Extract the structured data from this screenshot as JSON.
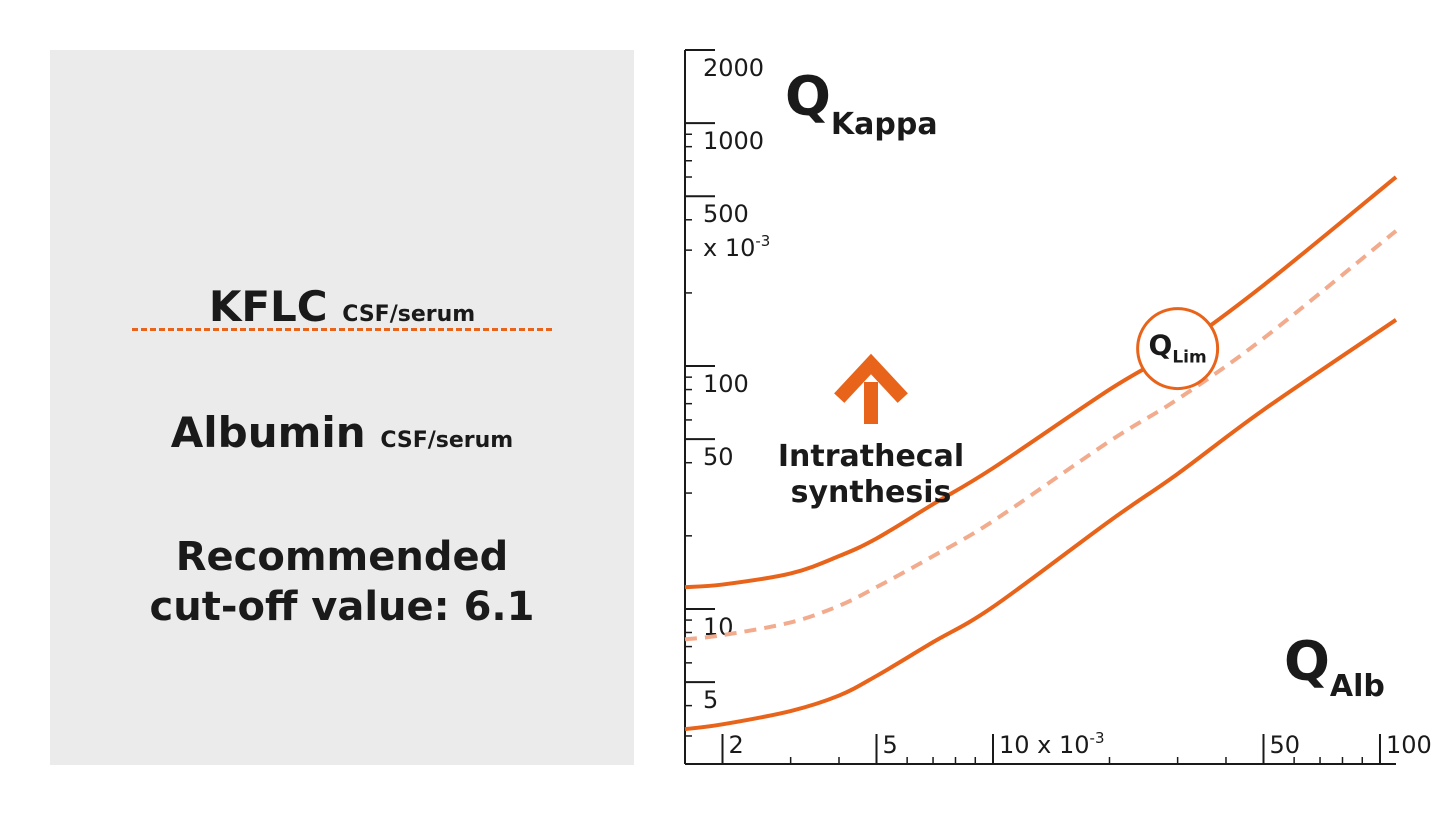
{
  "info_panel": {
    "numerator_main": "KFLC",
    "numerator_sub": "CSF/serum",
    "denominator_main": "Albumin",
    "denominator_sub": "CSF/serum",
    "cutoff_line1": "Recommended",
    "cutoff_line2": "cut-off value: 6.1",
    "divider_color": "#e8641b"
  },
  "colors": {
    "accent": "#e8641b",
    "dashed_curve": "#f2ab8c",
    "panel_bg": "#ebebeb",
    "axis": "#1a1a1a"
  },
  "chart_data": {
    "type": "line",
    "title": "",
    "ylabel_main": "Q",
    "ylabel_sub": "Kappa",
    "xlabel_main": "Q",
    "xlabel_sub": "Alb",
    "x_scale": "log",
    "y_scale": "log",
    "xlim": [
      1.6,
      110
    ],
    "ylim": [
      2.3,
      2000
    ],
    "x_tick_labels": [
      "2",
      "5",
      "10 x 10",
      "50",
      "100"
    ],
    "x_tick_values": [
      2,
      5,
      10,
      50,
      100
    ],
    "x_unit_exponent": "-3",
    "y_tick_labels": [
      "2000",
      "1000",
      "500",
      "100",
      "50",
      "10",
      "5"
    ],
    "y_tick_values": [
      2000,
      1000,
      500,
      100,
      50,
      10,
      5
    ],
    "y_unit_label": "x 10",
    "y_unit_exponent": "-3",
    "grid": false,
    "series": [
      {
        "name": "",
        "style": "solid",
        "x": [
          1.6,
          2,
          3,
          4,
          5,
          7,
          10,
          20,
          30,
          50,
          110
        ],
        "y": [
          12.3,
          12.6,
          14,
          16.5,
          19.5,
          27,
          38,
          80,
          118,
          215,
          600
        ]
      },
      {
        "name": "",
        "style": "dashed",
        "x": [
          1.6,
          2,
          3,
          4,
          5,
          7,
          10,
          20,
          30,
          50,
          110
        ],
        "y": [
          7.5,
          7.8,
          8.8,
          10.3,
          12.3,
          16.5,
          23,
          49,
          73,
          130,
          360
        ]
      },
      {
        "name": "",
        "style": "solid",
        "x": [
          1.6,
          2,
          3,
          4,
          5,
          7,
          10,
          20,
          30,
          50,
          110
        ],
        "y": [
          3.2,
          3.35,
          3.8,
          4.4,
          5.3,
          7.3,
          10.2,
          23,
          36,
          66,
          155
        ]
      }
    ],
    "annotations": {
      "qlim_main": "Q",
      "qlim_sub": "Lim",
      "qlim_at": {
        "x": 30,
        "y": 118
      },
      "arrow_label_line1": "Intrathecal",
      "arrow_label_line2": "synthesis"
    }
  }
}
